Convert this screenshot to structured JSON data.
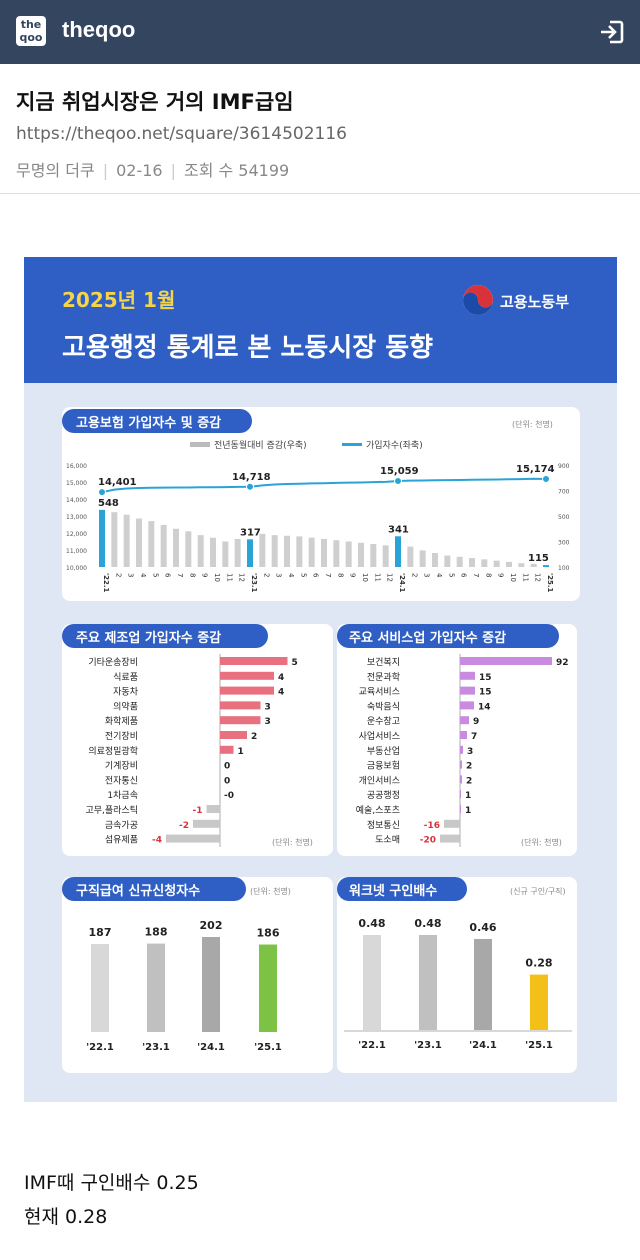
{
  "header": {
    "logo_top": "the",
    "logo_bottom": "qoo",
    "brand": "theqoo",
    "login_icon": "login-icon"
  },
  "post": {
    "title": "지금 취업시장은 거의 IMF급임",
    "url": "https://theqoo.net/square/3614502116",
    "author": "무명의 더쿠",
    "date": "02-16",
    "views_label": "조회 수 54199",
    "body_lines": [
      "IMF때 구인배수 0.25",
      "현재 0.28"
    ]
  },
  "infographic": {
    "date": "2025년 1월",
    "title": "고용행정 통계로 본 노동시장 동향",
    "ministry": "고용노동부",
    "colors": {
      "header_bg": "#2f5fc4",
      "page_bg": "#dfe7f5",
      "pill": "#2f5fc4",
      "date_color": "#f5d547",
      "line": "#2aa3d6",
      "bar_gray": "#cfcfcf",
      "bar_blue": "#2aa3d6",
      "mfg": "#e8707f",
      "svc": "#c98be0",
      "neg": "#c8c8c8",
      "green": "#7cc244",
      "yellow": "#f2c018"
    }
  },
  "chart_data": [
    {
      "type": "line+bar",
      "title": "고용보험 가입자수 및 증감",
      "unit": "(단위: 천명)",
      "legend": [
        "전년동월대비 증감(우축)",
        "가입자수(좌축)"
      ],
      "x": [
        "'22.1",
        "2",
        "3",
        "4",
        "5",
        "6",
        "7",
        "8",
        "9",
        "10",
        "11",
        "12",
        "'23.1",
        "2",
        "3",
        "4",
        "5",
        "6",
        "7",
        "8",
        "9",
        "10",
        "11",
        "12",
        "'24.1",
        "2",
        "3",
        "4",
        "5",
        "6",
        "7",
        "8",
        "9",
        "10",
        "11",
        "12",
        "'25.1"
      ],
      "subscribers": [
        14401,
        14550,
        14620,
        14650,
        14660,
        14670,
        14680,
        14680,
        14690,
        14690,
        14700,
        14710,
        14718,
        14800,
        14850,
        14880,
        14900,
        14920,
        14930,
        14950,
        14960,
        14970,
        14990,
        15010,
        15059,
        15080,
        15090,
        15100,
        15110,
        15120,
        15130,
        15140,
        15150,
        15160,
        15170,
        15190,
        15174
      ],
      "change": [
        548,
        530,
        510,
        480,
        460,
        430,
        400,
        380,
        350,
        330,
        300,
        320,
        317,
        360,
        350,
        345,
        340,
        330,
        320,
        310,
        300,
        290,
        280,
        270,
        341,
        260,
        230,
        210,
        190,
        180,
        170,
        160,
        150,
        140,
        130,
        125,
        115
      ],
      "highlight_indices": [
        0,
        12,
        24,
        36
      ],
      "labels_subscribers": [
        "14,401",
        "14,718",
        "15,059",
        "15,174"
      ],
      "labels_change": [
        "548",
        "317",
        "341",
        "115"
      ],
      "y_left_ticks": [
        "16,000",
        "15,000",
        "14,000",
        "13,000",
        "12,000",
        "11,000",
        "10,000"
      ],
      "y_left_range": [
        10000,
        16000
      ],
      "y_right_ticks": [
        "900",
        "700",
        "500",
        "300",
        "100"
      ],
      "y_right_range": [
        100,
        900
      ]
    },
    {
      "type": "bar",
      "title": "주요 제조업 가입자수 증감",
      "unit": "(단위: 천명)",
      "categories": [
        "기타운송장비",
        "식료품",
        "자동차",
        "의약품",
        "화학제품",
        "전기장비",
        "의료정밀광학",
        "기계장비",
        "전자통신",
        "1차금속",
        "고무,플라스틱",
        "금속가공",
        "섬유제품"
      ],
      "values": [
        5,
        4,
        4,
        3,
        3,
        2,
        1,
        0,
        0,
        0,
        -1,
        -2,
        -4
      ],
      "value_labels": [
        "5",
        "4",
        "4",
        "3",
        "3",
        "2",
        "1",
        "0",
        "0",
        "-0",
        "-1",
        "-2",
        "-4"
      ]
    },
    {
      "type": "bar",
      "title": "주요 서비스업 가입자수 증감",
      "unit": "(단위: 천명)",
      "categories": [
        "보건복지",
        "전문과학",
        "교육서비스",
        "숙박음식",
        "운수창고",
        "사업서비스",
        "부동산업",
        "금융보험",
        "개인서비스",
        "공공행정",
        "예술,스포츠",
        "정보통신",
        "도소매"
      ],
      "values": [
        92,
        15,
        15,
        14,
        9,
        7,
        3,
        2,
        2,
        1,
        1,
        -16,
        -20
      ],
      "value_labels": [
        "92",
        "15",
        "15",
        "14",
        "9",
        "7",
        "3",
        "2",
        "2",
        "1",
        "1",
        "-16",
        "-20"
      ]
    },
    {
      "type": "bar",
      "title": "구직급여 신규신청자수",
      "unit": "(단위: 천명)",
      "categories": [
        "'22.1",
        "'23.1",
        "'24.1",
        "'25.1"
      ],
      "values": [
        187,
        188,
        202,
        186
      ],
      "value_labels": [
        "187",
        "188",
        "202",
        "186"
      ]
    },
    {
      "type": "bar",
      "title": "워크넷 구인배수",
      "unit": "(신규 구인/구직)",
      "categories": [
        "'22.1",
        "'23.1",
        "'24.1",
        "'25.1"
      ],
      "values": [
        0.48,
        0.48,
        0.46,
        0.28
      ],
      "value_labels": [
        "0.48",
        "0.48",
        "0.46",
        "0.28"
      ]
    }
  ]
}
